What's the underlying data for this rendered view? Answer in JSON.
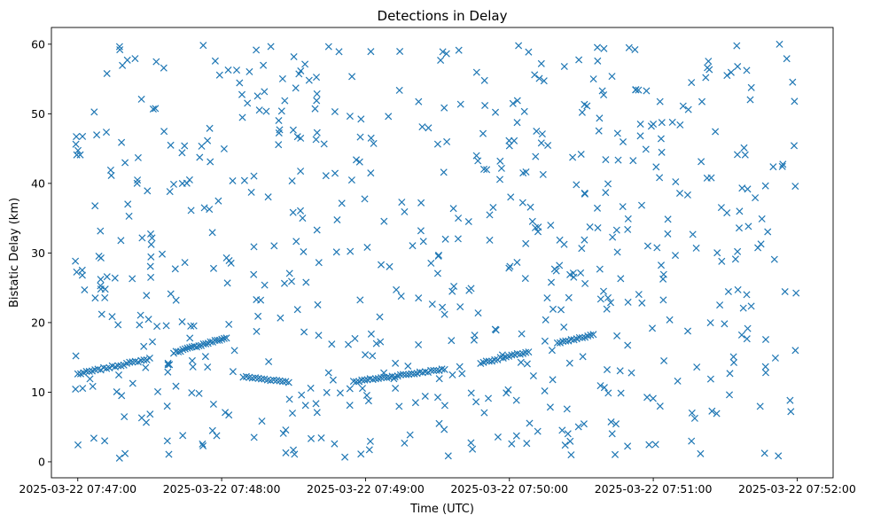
{
  "chart_data": {
    "type": "scatter",
    "title": "Detections in Delay",
    "xlabel": "Time (UTC)",
    "ylabel": "Bistatic Delay (km)",
    "x_axis_type": "datetime",
    "x_ticks": [
      "2025-03-22 07:47:00",
      "2025-03-22 07:48:00",
      "2025-03-22 07:49:00",
      "2025-03-22 07:50:00",
      "2025-03-22 07:51:00",
      "2025-03-22 07:52:00"
    ],
    "xlim": [
      "2025-03-22 07:46:49",
      "2025-03-22 07:52:15"
    ],
    "y_ticks": [
      0,
      10,
      20,
      30,
      40,
      50,
      60
    ],
    "ylim": [
      -2.3,
      62.4
    ],
    "marker": "x",
    "color": "#1f77b4",
    "grid": false,
    "legend": "none",
    "tracks": [
      {
        "t0": "2025-03-22 07:47:00",
        "t1": "2025-03-22 07:47:30",
        "y0": 12.6,
        "y1": 14.8,
        "n": 26
      },
      {
        "t0": "2025-03-22 07:47:40",
        "t1": "2025-03-22 07:48:02",
        "y0": 15.7,
        "y1": 17.8,
        "n": 24
      },
      {
        "t0": "2025-03-22 07:48:09",
        "t1": "2025-03-22 07:48:28",
        "y0": 12.2,
        "y1": 11.5,
        "n": 16
      },
      {
        "t0": "2025-03-22 07:48:55",
        "t1": "2025-03-22 07:49:33",
        "y0": 11.5,
        "y1": 13.3,
        "n": 34
      },
      {
        "t0": "2025-03-22 07:49:48",
        "t1": "2025-03-22 07:50:08",
        "y0": 14.2,
        "y1": 15.8,
        "n": 18
      },
      {
        "t0": "2025-03-22 07:50:20",
        "t1": "2025-03-22 07:50:35",
        "y0": 17.0,
        "y1": 18.2,
        "n": 14
      }
    ],
    "clutter": {
      "t0": "2025-03-22 07:46:59",
      "t1": "2025-03-22 07:52:00",
      "y_min": 0.5,
      "y_max": 60,
      "n": 640,
      "seed": 7
    }
  }
}
